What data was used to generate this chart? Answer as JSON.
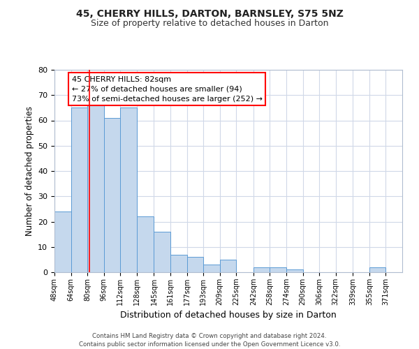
{
  "title1": "45, CHERRY HILLS, DARTON, BARNSLEY, S75 5NZ",
  "title2": "Size of property relative to detached houses in Darton",
  "xlabel": "Distribution of detached houses by size in Darton",
  "ylabel": "Number of detached properties",
  "bar_color": "#c5d8ed",
  "bar_edge_color": "#5b9bd5",
  "background_color": "#ffffff",
  "grid_color": "#d0d8e8",
  "categories": [
    "48sqm",
    "64sqm",
    "80sqm",
    "96sqm",
    "112sqm",
    "128sqm",
    "145sqm",
    "161sqm",
    "177sqm",
    "193sqm",
    "209sqm",
    "225sqm",
    "242sqm",
    "258sqm",
    "274sqm",
    "290sqm",
    "306sqm",
    "322sqm",
    "339sqm",
    "355sqm",
    "371sqm"
  ],
  "values": [
    24,
    65,
    68,
    61,
    65,
    22,
    16,
    7,
    6,
    3,
    5,
    0,
    2,
    2,
    1,
    0,
    0,
    0,
    0,
    2,
    0
  ],
  "ylim": [
    0,
    80
  ],
  "yticks": [
    0,
    10,
    20,
    30,
    40,
    50,
    60,
    70,
    80
  ],
  "annotation_text1": "45 CHERRY HILLS: 82sqm",
  "annotation_text2": "← 27% of detached houses are smaller (94)",
  "annotation_text3": "73% of semi-detached houses are larger (252) →",
  "footer1": "Contains HM Land Registry data © Crown copyright and database right 2024.",
  "footer2": "Contains public sector information licensed under the Open Government Licence v3.0."
}
